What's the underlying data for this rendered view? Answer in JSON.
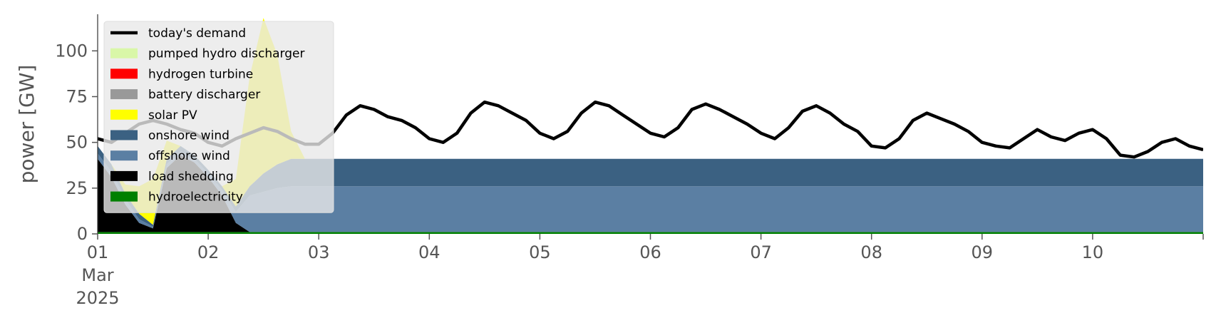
{
  "chart_data": {
    "type": "area",
    "ylabel": "power [GW]",
    "ylim": [
      0,
      120
    ],
    "yticks": [
      0,
      25,
      50,
      75,
      100
    ],
    "xlim": [
      0,
      10
    ],
    "grid": false,
    "background": "#ffffff",
    "legend_placement": "upper-left",
    "x_tick_labels": [
      {
        "x": 0,
        "label": "01"
      },
      {
        "x": 1,
        "label": "02"
      },
      {
        "x": 2,
        "label": "03"
      },
      {
        "x": 3,
        "label": "04"
      },
      {
        "x": 4,
        "label": "05"
      },
      {
        "x": 5,
        "label": "06"
      },
      {
        "x": 6,
        "label": "07"
      },
      {
        "x": 7,
        "label": "08"
      },
      {
        "x": 8,
        "label": "09"
      },
      {
        "x": 9,
        "label": "10"
      }
    ],
    "x_tick_sublabels": [
      "Mar",
      "2025"
    ],
    "x_units": "days since 2025-03-01 00:00",
    "x": [
      0,
      0.125,
      0.25,
      0.375,
      0.5,
      0.625,
      0.75,
      0.875,
      1,
      1.125,
      1.25,
      1.375,
      1.5,
      1.625,
      1.75,
      1.875,
      2,
      2.125,
      2.25,
      2.375,
      2.5,
      2.625,
      2.75,
      2.875,
      3,
      3.125,
      3.25,
      3.375,
      3.5,
      3.625,
      3.75,
      3.875,
      4,
      4.125,
      4.25,
      4.375,
      4.5,
      4.625,
      4.75,
      4.875,
      5,
      5.125,
      5.25,
      5.375,
      5.5,
      5.625,
      5.75,
      5.875,
      6,
      6.125,
      6.25,
      6.375,
      6.5,
      6.625,
      6.75,
      6.875,
      7,
      7.125,
      7.25,
      7.375,
      7.5,
      7.625,
      7.75,
      7.875,
      8,
      8.125,
      8.25,
      8.375,
      8.5,
      8.625,
      8.75,
      8.875,
      9,
      9.125,
      9.25,
      9.375,
      9.5,
      9.625,
      9.75,
      9.875,
      10
    ],
    "series": [
      {
        "name": "hydroelectricity",
        "color": "#008000",
        "values": [
          1,
          1,
          1,
          1,
          1,
          1,
          1,
          1,
          1,
          1,
          1,
          1,
          1,
          1,
          1,
          1,
          1,
          1,
          1,
          1,
          1,
          1,
          1,
          1,
          1,
          1,
          1,
          1,
          1,
          1,
          1,
          1,
          1,
          1,
          1,
          1,
          1,
          1,
          1,
          1,
          1,
          1,
          1,
          1,
          1,
          1,
          1,
          1,
          1,
          1,
          1,
          1,
          1,
          1,
          1,
          1,
          1,
          1,
          1,
          1,
          1,
          1,
          1,
          1,
          1,
          1,
          1,
          1,
          1,
          1,
          1,
          1,
          1,
          1,
          1,
          1,
          1,
          1,
          1,
          1,
          1
        ]
      },
      {
        "name": "load shedding",
        "color": "#000000",
        "values": [
          40,
          30,
          15,
          5,
          2,
          35,
          42,
          38,
          30,
          20,
          5,
          0,
          0,
          0,
          0,
          0,
          0,
          0,
          0,
          0,
          0,
          0,
          0,
          0,
          0,
          0,
          0,
          0,
          0,
          0,
          0,
          0,
          0,
          0,
          0,
          0,
          0,
          0,
          0,
          0,
          0,
          0,
          0,
          0,
          0,
          0,
          0,
          0,
          0,
          0,
          0,
          0,
          0,
          0,
          0,
          0,
          0,
          0,
          0,
          0,
          0,
          0,
          0,
          0,
          0,
          0,
          0,
          0,
          0,
          0,
          0,
          0,
          0,
          0,
          0,
          0,
          0,
          0,
          0,
          0,
          0
        ]
      },
      {
        "name": "offshore wind",
        "color": "#5b7fa3",
        "values": [
          3,
          3,
          3,
          2,
          1,
          2,
          2,
          2,
          2,
          3,
          6,
          20,
          22,
          24,
          25,
          25,
          25,
          25,
          25,
          25,
          25,
          25,
          25,
          25,
          25,
          25,
          25,
          25,
          25,
          25,
          25,
          25,
          25,
          25,
          25,
          25,
          25,
          25,
          25,
          25,
          25,
          25,
          25,
          25,
          25,
          25,
          25,
          25,
          25,
          25,
          25,
          25,
          25,
          25,
          25,
          25,
          25,
          25,
          25,
          25,
          25,
          25,
          25,
          25,
          25,
          25,
          25,
          25,
          25,
          25,
          25,
          25,
          25,
          25,
          25,
          25,
          25,
          25,
          25,
          25,
          25
        ]
      },
      {
        "name": "onshore wind",
        "color": "#3b6182",
        "values": [
          4,
          4,
          3,
          3,
          1,
          3,
          3,
          2,
          2,
          2,
          3,
          5,
          10,
          13,
          15,
          15,
          15,
          15,
          15,
          15,
          15,
          15,
          15,
          15,
          15,
          15,
          15,
          15,
          15,
          15,
          15,
          15,
          15,
          15,
          15,
          15,
          15,
          15,
          15,
          15,
          15,
          15,
          15,
          15,
          15,
          15,
          15,
          15,
          15,
          15,
          15,
          15,
          15,
          15,
          15,
          15,
          15,
          15,
          15,
          15,
          15,
          15,
          15,
          15,
          15,
          15,
          15,
          15,
          15,
          15,
          15,
          15,
          15,
          15,
          15,
          15,
          15,
          15,
          15,
          15,
          15
        ]
      },
      {
        "name": "solar PV",
        "color": "#ffff00",
        "values": [
          0,
          0,
          5,
          15,
          25,
          10,
          0,
          0,
          0,
          0,
          15,
          60,
          85,
          60,
          15,
          0,
          0,
          0,
          0,
          0,
          0,
          0,
          0,
          0,
          0,
          0,
          0,
          0,
          0,
          0,
          0,
          0,
          0,
          0,
          0,
          0,
          0,
          0,
          0,
          0,
          0,
          0,
          0,
          0,
          0,
          0,
          0,
          0,
          0,
          0,
          0,
          0,
          0,
          0,
          0,
          0,
          0,
          0,
          0,
          0,
          0,
          0,
          0,
          0,
          0,
          0,
          0,
          0,
          0,
          0,
          0,
          0,
          0,
          0,
          0,
          0,
          0,
          0,
          0,
          0,
          0
        ]
      },
      {
        "name": "battery discharger",
        "color": "#999999",
        "values": [
          0,
          0,
          0,
          0,
          0,
          0,
          0,
          0,
          0,
          0,
          0,
          0,
          0,
          0,
          0,
          0,
          0,
          0,
          0,
          0,
          0,
          0,
          0,
          0,
          0,
          0,
          0,
          0,
          0,
          0,
          0,
          0,
          0,
          0,
          0,
          0,
          0,
          0,
          0,
          0,
          0,
          0,
          0,
          0,
          0,
          0,
          0,
          0,
          0,
          0,
          0,
          0,
          0,
          0,
          0,
          0,
          0,
          0,
          0,
          0,
          0,
          0,
          0,
          0,
          0,
          0,
          0,
          0,
          0,
          0,
          0,
          0,
          0,
          0,
          0,
          0,
          0,
          0,
          0,
          0,
          0
        ]
      },
      {
        "name": "hydrogen turbine",
        "color": "#ff0000",
        "values": [
          0,
          0,
          0,
          0,
          0,
          0,
          0,
          0,
          0,
          0,
          0,
          0,
          0,
          0,
          0,
          0,
          0,
          0,
          0,
          0,
          0,
          0,
          0,
          0,
          0,
          0,
          0,
          0,
          0,
          0,
          0,
          0,
          0,
          0,
          0,
          0,
          0,
          0,
          0,
          0,
          0,
          0,
          0,
          0,
          0,
          0,
          0,
          0,
          0,
          0,
          0,
          0,
          0,
          0,
          0,
          0,
          0,
          0,
          0,
          0,
          0,
          0,
          0,
          0,
          0,
          0,
          0,
          0,
          0,
          0,
          0,
          0,
          0,
          0,
          0,
          0,
          0,
          0,
          0,
          0,
          0
        ]
      },
      {
        "name": "pumped hydro discharger",
        "color": "#d9f7a8",
        "values": [
          0,
          0,
          0,
          0,
          0,
          0,
          0,
          0,
          0,
          0,
          0,
          0,
          0,
          0,
          0,
          0,
          0,
          0,
          0,
          0,
          0,
          0,
          0,
          0,
          0,
          0,
          0,
          0,
          0,
          0,
          0,
          0,
          0,
          0,
          0,
          0,
          0,
          0,
          0,
          0,
          0,
          0,
          0,
          0,
          0,
          0,
          0,
          0,
          0,
          0,
          0,
          0,
          0,
          0,
          0,
          0,
          0,
          0,
          0,
          0,
          0,
          0,
          0,
          0,
          0,
          0,
          0,
          0,
          0,
          0,
          0,
          0,
          0,
          0,
          0,
          0,
          0,
          0,
          0,
          0,
          0
        ]
      }
    ],
    "demand": {
      "name": "today's demand",
      "color": "#000000",
      "values": [
        52,
        50,
        55,
        60,
        62,
        60,
        57,
        55,
        50,
        48,
        52,
        55,
        58,
        56,
        52,
        49,
        49,
        55,
        65,
        70,
        68,
        64,
        62,
        58,
        52,
        50,
        55,
        66,
        72,
        70,
        66,
        62,
        55,
        52,
        56,
        66,
        72,
        70,
        65,
        60,
        55,
        53,
        58,
        68,
        71,
        68,
        64,
        60,
        55,
        52,
        58,
        67,
        70,
        66,
        60,
        56,
        48,
        47,
        52,
        62,
        66,
        63,
        60,
        56,
        50,
        48,
        47,
        52,
        57,
        53,
        51,
        55,
        57,
        52,
        43,
        42,
        45,
        50,
        52,
        48,
        46
      ]
    },
    "legend": [
      "today's demand",
      "pumped hydro discharger",
      "hydrogen turbine",
      "battery discharger",
      "solar PV",
      "onshore wind",
      "offshore wind",
      "load shedding",
      "hydroelectricity"
    ]
  }
}
